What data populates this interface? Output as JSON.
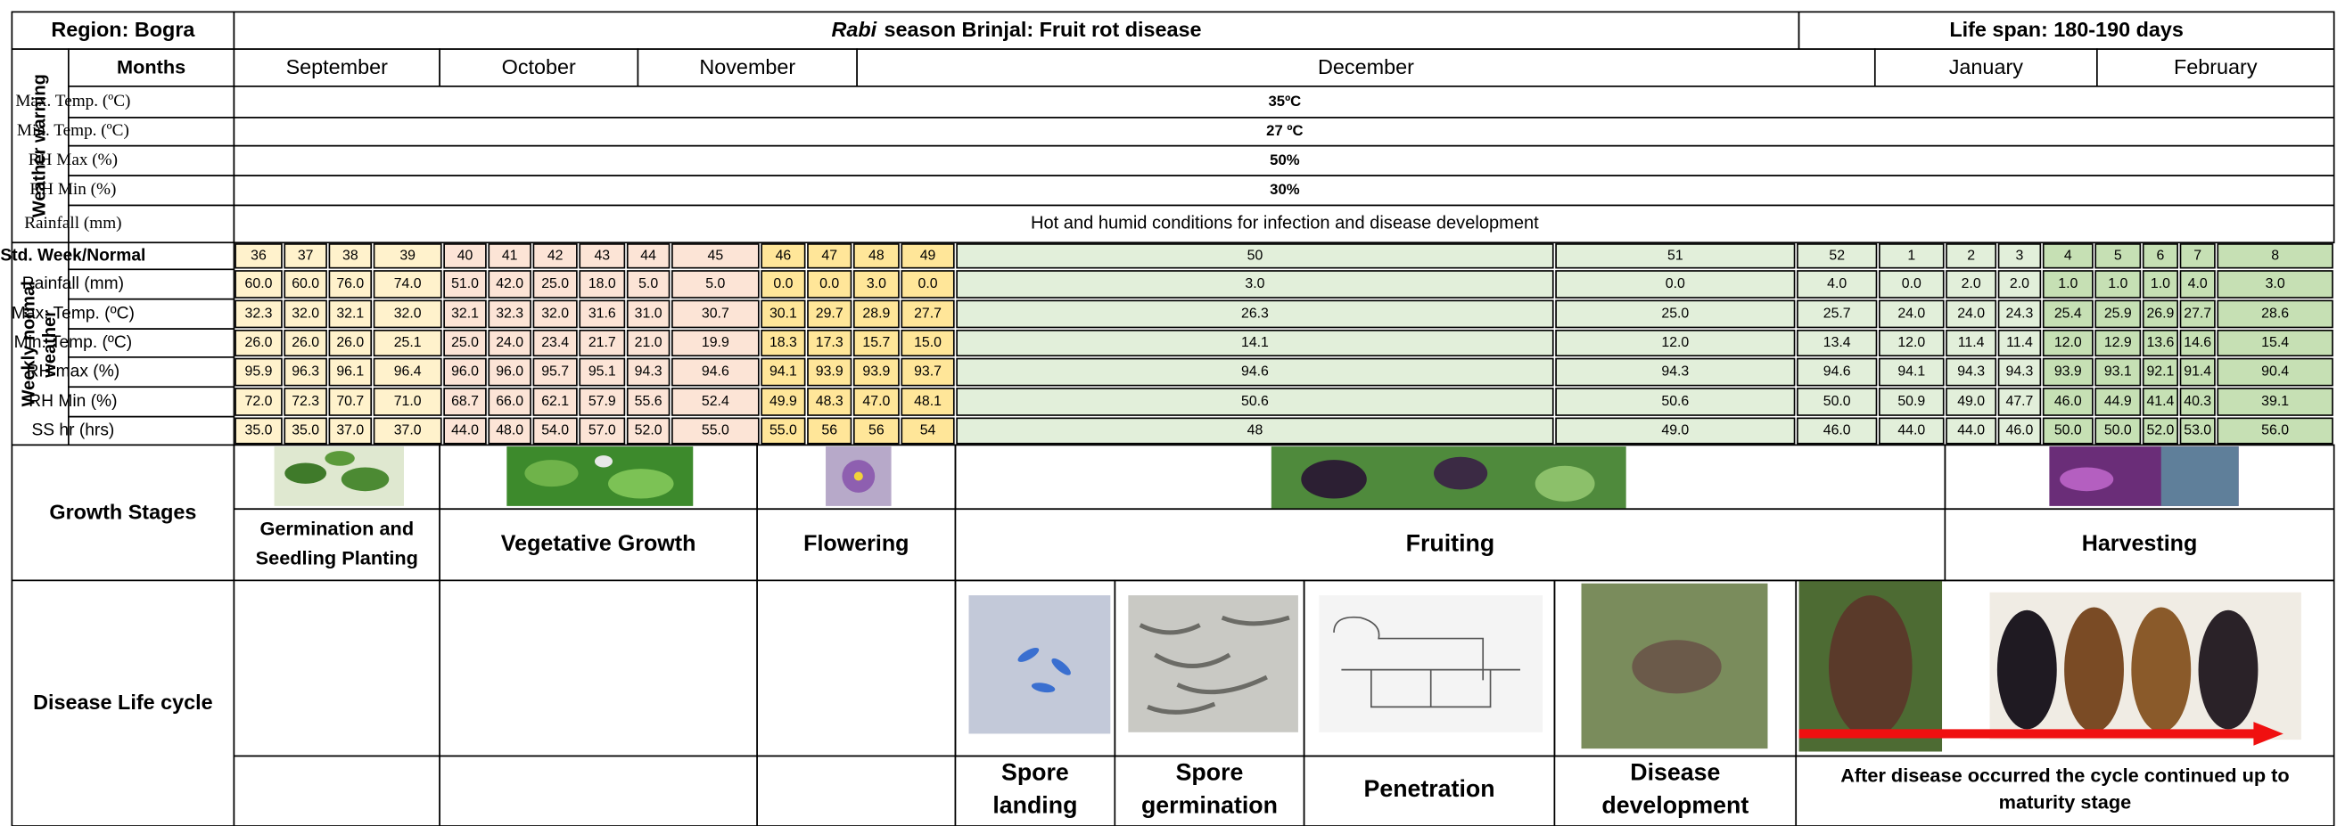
{
  "header": {
    "region": "Region: Bogra",
    "title_italic": "Rabi",
    "title": "season Brinjal: Fruit rot disease",
    "life_span": "Life span: 180-190 days"
  },
  "months_label": "Months",
  "months": [
    "September",
    "October",
    "November",
    "December",
    "January",
    "February"
  ],
  "weather_warning": {
    "label": "Weather warning",
    "rows": [
      {
        "label": "Max. Temp. (ºC)",
        "value": "35ºC"
      },
      {
        "label": "Min. Temp. (ºC)",
        "value": "27 ºC"
      },
      {
        "label": "RH Max (%)",
        "value": "50%"
      },
      {
        "label": "RH Min (%)",
        "value": "30%"
      },
      {
        "label": "Rainfall  (mm)",
        "value": "Hot and humid conditions for infection and disease development"
      }
    ]
  },
  "weekly": {
    "label": [
      "Weekly normal",
      "weather"
    ],
    "rows": [
      {
        "label": "Std. Week/Normal",
        "values": [
          36,
          37,
          38,
          39,
          40,
          41,
          42,
          43,
          44,
          45,
          46,
          47,
          48,
          49,
          50,
          51,
          52,
          1,
          2,
          3,
          4,
          5,
          6,
          7,
          8
        ]
      },
      {
        "label": "Rainfall (mm)",
        "values": [
          "60.0",
          "60.0",
          "76.0",
          "74.0",
          "51.0",
          "42.0",
          "25.0",
          "18.0",
          "5.0",
          "5.0",
          "0.0",
          "0.0",
          "3.0",
          "0.0",
          "3.0",
          "0.0",
          "4.0",
          "0.0",
          "2.0",
          "2.0",
          "1.0",
          "1.0",
          "1.0",
          "4.0",
          "3.0"
        ]
      },
      {
        "label": "Max. Temp. (ºC)",
        "values": [
          "32.3",
          "32.0",
          "32.1",
          "32.0",
          "32.1",
          "32.3",
          "32.0",
          "31.6",
          "31.0",
          "30.7",
          "30.1",
          "29.7",
          "28.9",
          "27.7",
          "26.3",
          "25.0",
          "25.7",
          "24.0",
          "24.0",
          "24.3",
          "25.4",
          "25.9",
          "26.9",
          "27.7",
          "28.6"
        ]
      },
      {
        "label": "Min. Temp. (ºC)",
        "values": [
          "26.0",
          "26.0",
          "26.0",
          "25.1",
          "25.0",
          "24.0",
          "23.4",
          "21.7",
          "21.0",
          "19.9",
          "18.3",
          "17.3",
          "15.7",
          "15.0",
          "14.1",
          "12.0",
          "13.4",
          "12.0",
          "11.4",
          "11.4",
          "12.0",
          "12.9",
          "13.6",
          "14.6",
          "15.4"
        ]
      },
      {
        "label": "RH max (%)",
        "values": [
          "95.9",
          "96.3",
          "96.1",
          "96.4",
          "96.0",
          "96.0",
          "95.7",
          "95.1",
          "94.3",
          "94.6",
          "94.1",
          "93.9",
          "93.9",
          "93.7",
          "94.6",
          "94.3",
          "94.6",
          "94.1",
          "94.3",
          "94.3",
          "93.9",
          "93.1",
          "92.1",
          "91.4",
          "90.4"
        ]
      },
      {
        "label": "RH Min (%)",
        "values": [
          "72.0",
          "72.3",
          "70.7",
          "71.0",
          "68.7",
          "66.0",
          "62.1",
          "57.9",
          "55.6",
          "52.4",
          "49.9",
          "48.3",
          "47.0",
          "48.1",
          "50.6",
          "50.6",
          "50.0",
          "50.9",
          "49.0",
          "47.7",
          "46.0",
          "44.9",
          "41.4",
          "40.3",
          "39.1"
        ]
      },
      {
        "label": "SS hr (hrs)",
        "values": [
          "35.0",
          "35.0",
          "37.0",
          "37.0",
          "44.0",
          "48.0",
          "54.0",
          "57.0",
          "52.0",
          "55.0",
          "55.0",
          "56",
          "56",
          "54",
          "48",
          "49.0",
          "46.0",
          "44.0",
          "44.0",
          "46.0",
          "50.0",
          "50.0",
          "52.0",
          "53.0",
          "56.0"
        ]
      }
    ]
  },
  "growth": {
    "label": "Growth Stages",
    "stages": [
      [
        "Germination and",
        "Seedling Planting"
      ],
      [
        "Vegetative Growth"
      ],
      [
        "Flowering"
      ],
      [
        "Fruiting"
      ],
      [
        "Harvesting"
      ]
    ]
  },
  "disease": {
    "label": "Disease Life cycle",
    "stages": [
      [
        "Spore",
        "landing"
      ],
      [
        "Spore",
        "germination"
      ],
      [
        "Penetration"
      ],
      [
        "Disease",
        "development"
      ],
      [
        "After disease occurred the cycle continued up to",
        "maturity stage"
      ]
    ]
  }
}
